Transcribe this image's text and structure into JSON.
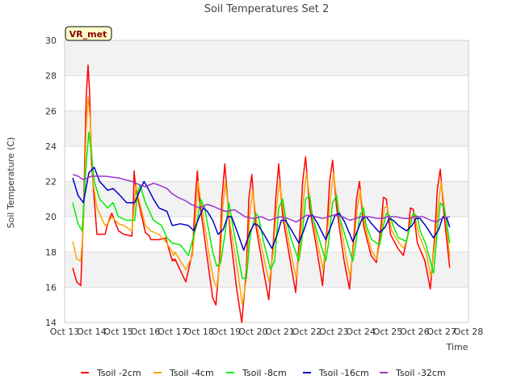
{
  "chart_data": {
    "type": "line",
    "title": "Soil Temperatures Set 2",
    "xlabel": "Time",
    "ylabel": "Soil Temperature (C)",
    "station_label": "VR_met",
    "x_ticks": [
      "Oct 13",
      "Oct 14",
      "Oct 15",
      "Oct 16",
      "Oct 17",
      "Oct 18",
      "Oct 19",
      "Oct 20",
      "Oct 21",
      "Oct 22",
      "Oct 23",
      "Oct 24",
      "Oct 25",
      "Oct 26",
      "Oct 27",
      "Oct 28"
    ],
    "xlim": [
      13,
      28
    ],
    "ylim": [
      14,
      30
    ],
    "y_ticks": [
      14,
      16,
      18,
      20,
      22,
      24,
      26,
      28,
      30
    ],
    "grid": true,
    "legend_position": "bottom",
    "x_unit": "day of October (fractional)",
    "series": [
      {
        "name": "Tsoil -2cm",
        "color": "#ff0000",
        "x": [
          13.3,
          13.45,
          13.6,
          13.7,
          13.8,
          13.87,
          13.93,
          14.0,
          14.2,
          14.5,
          14.6,
          14.75,
          15.0,
          15.2,
          15.5,
          15.55,
          15.58,
          15.65,
          16.0,
          16.15,
          16.2,
          16.5,
          16.75,
          17.0,
          17.03,
          17.07,
          17.1,
          17.5,
          17.75,
          17.85,
          17.93,
          18.0,
          18.4,
          18.5,
          18.62,
          18.75,
          18.84,
          18.95,
          19.15,
          19.38,
          19.58,
          19.75,
          19.84,
          19.95,
          20.1,
          20.38,
          20.58,
          20.75,
          20.84,
          20.95,
          21.1,
          21.38,
          21.58,
          21.75,
          21.84,
          21.95,
          22.1,
          22.38,
          22.58,
          22.75,
          22.84,
          22.95,
          23.1,
          23.38,
          23.58,
          23.75,
          23.84,
          23.95,
          24.1,
          24.38,
          24.58,
          24.75,
          24.84,
          24.95,
          25.1,
          25.38,
          25.58,
          25.75,
          25.84,
          25.95,
          26.1,
          26.38,
          26.58,
          26.75,
          26.84,
          26.95,
          27.1,
          27.3
        ],
        "values": [
          17.1,
          16.3,
          16.1,
          20.0,
          26.8,
          28.6,
          27.0,
          23.0,
          19.0,
          19.0,
          19.6,
          20.2,
          19.2,
          19.0,
          18.9,
          20.5,
          22.6,
          21.5,
          19.1,
          18.9,
          18.7,
          18.7,
          18.8,
          17.5,
          17.6,
          17.5,
          17.6,
          16.3,
          18.0,
          21.0,
          22.6,
          21.0,
          16.5,
          15.4,
          15.0,
          17.5,
          21.0,
          23.0,
          19.0,
          16.0,
          14.0,
          17.0,
          21.0,
          22.4,
          19.5,
          17.0,
          15.3,
          18.5,
          21.0,
          23.0,
          20.0,
          17.5,
          15.7,
          19.5,
          22.0,
          23.4,
          20.5,
          18.0,
          16.1,
          19.5,
          22.0,
          23.2,
          20.5,
          17.5,
          15.9,
          19.0,
          21.0,
          22.0,
          19.5,
          17.8,
          17.4,
          19.5,
          21.1,
          21.0,
          19.0,
          18.2,
          17.8,
          19.0,
          20.5,
          20.4,
          18.5,
          17.5,
          15.9,
          19.0,
          21.5,
          22.7,
          20.0,
          17.1
        ]
      },
      {
        "name": "Tsoil -4cm",
        "color": "#ffa500",
        "x": [
          13.3,
          13.45,
          13.6,
          13.7,
          13.8,
          13.87,
          13.95,
          14.05,
          14.2,
          14.5,
          14.6,
          14.75,
          15.0,
          15.2,
          15.5,
          15.58,
          15.65,
          15.75,
          16.0,
          16.2,
          16.5,
          16.75,
          17.0,
          17.05,
          17.1,
          17.5,
          17.75,
          17.87,
          17.95,
          18.05,
          18.4,
          18.55,
          18.65,
          18.78,
          18.87,
          18.97,
          19.15,
          19.42,
          19.6,
          19.75,
          19.87,
          19.98,
          20.15,
          20.42,
          20.6,
          20.75,
          20.87,
          20.98,
          21.15,
          21.42,
          21.6,
          21.75,
          21.87,
          21.98,
          22.15,
          22.42,
          22.6,
          22.75,
          22.87,
          22.98,
          23.15,
          23.42,
          23.6,
          23.75,
          23.87,
          23.98,
          24.15,
          24.42,
          24.6,
          24.75,
          24.87,
          24.98,
          25.15,
          25.42,
          25.6,
          25.75,
          25.87,
          25.98,
          26.15,
          26.42,
          26.6,
          26.75,
          26.87,
          26.98,
          27.15,
          27.3
        ],
        "values": [
          18.6,
          17.6,
          17.5,
          19.5,
          25.0,
          26.8,
          25.5,
          22.0,
          20.5,
          19.5,
          19.6,
          20.0,
          19.6,
          19.5,
          19.2,
          20.5,
          21.8,
          21.0,
          19.5,
          19.2,
          19.0,
          18.6,
          18.0,
          17.8,
          18.0,
          17.0,
          17.8,
          20.0,
          22.0,
          21.0,
          17.5,
          16.3,
          16.0,
          17.5,
          20.5,
          22.0,
          19.5,
          17.0,
          15.0,
          16.5,
          20.0,
          21.5,
          19.5,
          17.5,
          16.3,
          18.0,
          20.5,
          22.0,
          20.0,
          17.8,
          16.5,
          18.5,
          21.0,
          22.5,
          20.5,
          18.3,
          17.0,
          19.0,
          21.0,
          22.5,
          20.5,
          18.0,
          16.6,
          18.5,
          20.5,
          21.5,
          19.5,
          18.0,
          17.6,
          19.0,
          20.5,
          20.6,
          19.2,
          18.5,
          18.2,
          19.0,
          20.0,
          20.2,
          19.0,
          18.0,
          16.6,
          18.5,
          20.5,
          22.0,
          20.0,
          17.7
        ]
      },
      {
        "name": "Tsoil -8cm",
        "color": "#00ee00",
        "x": [
          13.3,
          13.5,
          13.65,
          13.8,
          13.9,
          14.0,
          14.1,
          14.3,
          14.6,
          14.8,
          15.0,
          15.3,
          15.6,
          15.7,
          15.8,
          16.0,
          16.3,
          16.6,
          16.8,
          17.0,
          17.3,
          17.6,
          17.9,
          18.05,
          18.2,
          18.5,
          18.65,
          18.8,
          19.0,
          19.1,
          19.3,
          19.6,
          19.75,
          19.9,
          20.1,
          20.2,
          20.4,
          20.65,
          20.8,
          20.95,
          21.1,
          21.2,
          21.4,
          21.7,
          21.8,
          21.95,
          22.1,
          22.2,
          22.4,
          22.7,
          22.8,
          22.95,
          23.1,
          23.2,
          23.4,
          23.7,
          23.8,
          23.95,
          24.1,
          24.2,
          24.4,
          24.7,
          24.8,
          24.95,
          25.1,
          25.2,
          25.4,
          25.7,
          25.8,
          25.95,
          26.1,
          26.2,
          26.4,
          26.7,
          26.8,
          26.95,
          27.1,
          27.3
        ],
        "values": [
          20.8,
          19.6,
          19.2,
          23.0,
          24.8,
          23.5,
          22.0,
          21.0,
          20.5,
          20.8,
          20.0,
          19.8,
          19.8,
          21.3,
          21.8,
          20.8,
          19.8,
          19.5,
          18.8,
          18.5,
          18.4,
          17.8,
          19.5,
          21.0,
          20.5,
          18.0,
          17.2,
          17.4,
          19.5,
          20.8,
          19.0,
          16.5,
          16.5,
          19.0,
          20.2,
          20.0,
          18.5,
          17.0,
          17.5,
          20.5,
          21.0,
          20.0,
          18.8,
          17.5,
          18.5,
          21.0,
          21.2,
          20.0,
          19.0,
          17.5,
          18.5,
          20.8,
          21.2,
          20.0,
          19.0,
          17.5,
          18.3,
          20.0,
          20.5,
          19.5,
          18.7,
          18.4,
          19.2,
          20.2,
          20.0,
          19.5,
          18.8,
          18.6,
          19.3,
          20.2,
          20.0,
          19.2,
          18.5,
          16.8,
          18.5,
          20.8,
          20.5,
          18.5
        ]
      },
      {
        "name": "Tsoil -16cm",
        "color": "#0000cc",
        "x": [
          13.3,
          13.5,
          13.7,
          13.9,
          14.1,
          14.3,
          14.6,
          14.8,
          15.0,
          15.3,
          15.6,
          15.8,
          15.95,
          16.1,
          16.3,
          16.5,
          16.8,
          17.0,
          17.3,
          17.6,
          17.8,
          18.0,
          18.15,
          18.3,
          18.5,
          18.7,
          18.9,
          19.05,
          19.2,
          19.4,
          19.65,
          19.9,
          20.05,
          20.2,
          20.4,
          20.7,
          20.9,
          21.05,
          21.2,
          21.4,
          21.7,
          21.9,
          22.05,
          22.2,
          22.4,
          22.7,
          22.9,
          23.05,
          23.2,
          23.4,
          23.7,
          23.9,
          24.05,
          24.2,
          24.4,
          24.7,
          24.9,
          25.05,
          25.2,
          25.4,
          25.7,
          25.9,
          26.05,
          26.2,
          26.4,
          26.7,
          26.9,
          27.05,
          27.2,
          27.3
        ],
        "values": [
          22.2,
          21.2,
          20.8,
          22.5,
          22.8,
          22.0,
          21.5,
          21.6,
          21.3,
          20.8,
          20.8,
          21.5,
          22.0,
          21.6,
          21.0,
          20.5,
          20.3,
          19.5,
          19.6,
          19.5,
          19.2,
          20.0,
          20.5,
          20.3,
          19.8,
          19.0,
          19.3,
          20.0,
          20.0,
          19.2,
          18.1,
          19.2,
          19.6,
          19.5,
          19.0,
          18.2,
          19.0,
          19.8,
          19.8,
          19.3,
          18.5,
          19.3,
          20.0,
          20.1,
          19.6,
          18.7,
          19.5,
          20.1,
          20.2,
          19.7,
          18.6,
          19.3,
          19.9,
          20.0,
          19.6,
          19.1,
          19.4,
          19.9,
          19.8,
          19.5,
          19.2,
          19.5,
          19.9,
          19.9,
          19.5,
          18.8,
          19.3,
          20.0,
          19.9,
          19.4
        ]
      },
      {
        "name": "Tsoil -32cm",
        "color": "#9933cc",
        "x": [
          13.3,
          13.5,
          13.7,
          14.0,
          14.5,
          15.0,
          15.5,
          15.8,
          16.0,
          16.3,
          16.5,
          16.8,
          17.0,
          17.2,
          17.5,
          17.7,
          18.0,
          18.3,
          18.5,
          18.8,
          19.0,
          19.3,
          19.5,
          19.7,
          20.0,
          20.3,
          20.6,
          20.8,
          21.0,
          21.3,
          21.6,
          21.8,
          22.0,
          22.3,
          22.6,
          22.8,
          23.0,
          23.3,
          23.6,
          23.8,
          24.0,
          24.3,
          24.6,
          24.8,
          25.0,
          25.3,
          25.6,
          25.8,
          26.0,
          26.3,
          26.6,
          26.8,
          27.0,
          27.3
        ],
        "values": [
          22.4,
          22.3,
          22.1,
          22.3,
          22.3,
          22.2,
          22.0,
          21.8,
          21.7,
          21.9,
          21.8,
          21.6,
          21.3,
          21.1,
          20.9,
          20.7,
          20.5,
          20.7,
          20.6,
          20.4,
          20.3,
          20.4,
          20.2,
          20.0,
          19.9,
          20.0,
          19.8,
          19.9,
          20.0,
          19.9,
          19.7,
          19.9,
          20.1,
          20.0,
          19.9,
          20.0,
          20.1,
          20.0,
          19.8,
          19.9,
          20.0,
          20.0,
          19.9,
          19.9,
          20.0,
          20.0,
          19.9,
          19.9,
          20.0,
          20.0,
          19.8,
          19.7,
          19.9,
          20.0
        ]
      }
    ]
  }
}
